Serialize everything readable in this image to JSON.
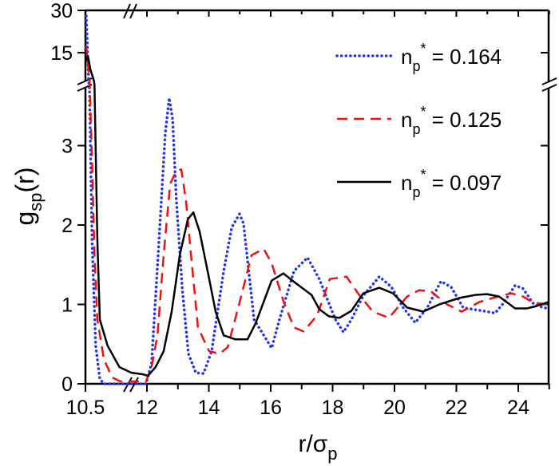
{
  "chart_data": {
    "type": "line",
    "title": "",
    "xlabel": "r/σ",
    "xlabel_sub": "p",
    "ylabel": "g",
    "ylabel_sub": "sp",
    "ylabel_suffix": "(r)",
    "xlim": [
      10.5,
      25
    ],
    "x_break": [
      11.6,
      11.7
    ],
    "ylim_lower": [
      0,
      3.77
    ],
    "ylim_upper": [
      4,
      30
    ],
    "x_ticks": [
      "10.5",
      "12",
      "14",
      "16",
      "18",
      "20",
      "22",
      "24"
    ],
    "y_ticks": [
      "0",
      "1",
      "2",
      "3",
      "15",
      "30"
    ],
    "grid": false,
    "legend_placement": "top-right",
    "series": [
      {
        "name": "n_p* = 0.164",
        "label_main": "n",
        "label_sub": "p",
        "label_sup": "*",
        "label_value": " = 0.164",
        "color": "#2233ee",
        "style": "dotted",
        "points": [
          [
            10.52,
            28
          ],
          [
            10.55,
            15
          ],
          [
            10.58,
            5
          ],
          [
            10.6,
            3.7
          ],
          [
            10.66,
            1.82
          ],
          [
            10.75,
            0.48
          ],
          [
            10.85,
            0.06
          ],
          [
            10.95,
            0
          ],
          [
            11.98,
            0
          ],
          [
            12.15,
            0.26
          ],
          [
            12.36,
            1.6
          ],
          [
            12.59,
            3.15
          ],
          [
            12.72,
            3.6
          ],
          [
            12.83,
            3.33
          ],
          [
            12.95,
            2.32
          ],
          [
            13.14,
            1.2
          ],
          [
            13.34,
            0.38
          ],
          [
            13.58,
            0.14
          ],
          [
            13.83,
            0.13
          ],
          [
            14.09,
            0.41
          ],
          [
            14.48,
            1.42
          ],
          [
            14.74,
            1.97
          ],
          [
            14.99,
            2.14
          ],
          [
            15.12,
            2.02
          ],
          [
            15.46,
            0.81
          ],
          [
            16.03,
            0.45
          ],
          [
            16.28,
            0.81
          ],
          [
            16.75,
            1.42
          ],
          [
            17.19,
            1.59
          ],
          [
            17.57,
            1.32
          ],
          [
            18.09,
            0.81
          ],
          [
            18.35,
            0.65
          ],
          [
            18.61,
            0.81
          ],
          [
            18.99,
            1.11
          ],
          [
            19.51,
            1.35
          ],
          [
            19.9,
            1.22
          ],
          [
            20.28,
            0.96
          ],
          [
            20.67,
            0.77
          ],
          [
            21.06,
            0.96
          ],
          [
            21.5,
            1.29
          ],
          [
            21.83,
            1.22
          ],
          [
            22.22,
            0.96
          ],
          [
            22.68,
            0.93
          ],
          [
            22.99,
            0.91
          ],
          [
            23.25,
            0.89
          ],
          [
            23.51,
            1.01
          ],
          [
            23.9,
            1.24
          ],
          [
            24.15,
            1.2
          ],
          [
            24.49,
            1.01
          ],
          [
            24.8,
            0.96
          ],
          [
            24.98,
            0.95
          ]
        ]
      },
      {
        "name": "n_p* = 0.125",
        "label_main": "n",
        "label_sub": "p",
        "label_sup": "*",
        "label_value": " = 0.125",
        "color": "#ee1111",
        "style": "dashed",
        "points": [
          [
            10.52,
            17.6
          ],
          [
            10.55,
            12
          ],
          [
            10.6,
            6
          ],
          [
            10.66,
            2.82
          ],
          [
            10.72,
            1.62
          ],
          [
            10.79,
            0.81
          ],
          [
            10.95,
            0.31
          ],
          [
            11.15,
            0.08
          ],
          [
            11.35,
            0.03
          ],
          [
            11.98,
            0.03
          ],
          [
            12.15,
            0.21
          ],
          [
            12.34,
            0.61
          ],
          [
            12.54,
            1.62
          ],
          [
            12.75,
            2.52
          ],
          [
            12.95,
            2.68
          ],
          [
            13.11,
            2.7
          ],
          [
            13.26,
            2.32
          ],
          [
            13.45,
            1.52
          ],
          [
            13.65,
            0.71
          ],
          [
            14.01,
            0.41
          ],
          [
            14.35,
            0.38
          ],
          [
            14.61,
            0.46
          ],
          [
            14.99,
            1.02
          ],
          [
            15.38,
            1.62
          ],
          [
            15.77,
            1.7
          ],
          [
            16.03,
            1.52
          ],
          [
            16.41,
            1.04
          ],
          [
            16.75,
            0.71
          ],
          [
            17.06,
            0.66
          ],
          [
            17.5,
            0.86
          ],
          [
            17.91,
            1.32
          ],
          [
            18.45,
            1.35
          ],
          [
            18.86,
            1.12
          ],
          [
            19.3,
            0.91
          ],
          [
            19.82,
            0.83
          ],
          [
            20.41,
            1.1
          ],
          [
            20.8,
            1.18
          ],
          [
            21.19,
            1.16
          ],
          [
            21.7,
            1.0
          ],
          [
            22.17,
            0.91
          ],
          [
            22.74,
            1.03
          ],
          [
            23.17,
            1.08
          ],
          [
            23.77,
            1.14
          ],
          [
            24.15,
            1.1
          ],
          [
            24.49,
            1.02
          ],
          [
            24.98,
            1.0
          ]
        ]
      },
      {
        "name": "n_p* = 0.097",
        "label_main": "n",
        "label_sub": "p",
        "label_sup": "*",
        "label_value": " = 0.097",
        "color": "#000000",
        "style": "solid",
        "points": [
          [
            10.51,
            12
          ],
          [
            10.56,
            13.9
          ],
          [
            10.62,
            9
          ],
          [
            10.7,
            5.4
          ],
          [
            10.72,
            3.83
          ],
          [
            10.79,
            1.82
          ],
          [
            10.85,
            0.81
          ],
          [
            11.04,
            0.48
          ],
          [
            11.33,
            0.21
          ],
          [
            11.62,
            0.14
          ],
          [
            11.91,
            0.12
          ],
          [
            12.03,
            0.1
          ],
          [
            12.28,
            0.21
          ],
          [
            12.54,
            0.41
          ],
          [
            12.8,
            0.91
          ],
          [
            13.06,
            1.62
          ],
          [
            13.32,
            2.07
          ],
          [
            13.5,
            2.16
          ],
          [
            13.7,
            1.92
          ],
          [
            13.96,
            1.42
          ],
          [
            14.22,
            0.91
          ],
          [
            14.48,
            0.61
          ],
          [
            14.86,
            0.56
          ],
          [
            15.25,
            0.56
          ],
          [
            15.51,
            0.76
          ],
          [
            16.03,
            1.3
          ],
          [
            16.41,
            1.39
          ],
          [
            16.8,
            1.27
          ],
          [
            17.32,
            1.12
          ],
          [
            17.57,
            0.94
          ],
          [
            17.88,
            0.85
          ],
          [
            18.22,
            0.83
          ],
          [
            18.61,
            0.92
          ],
          [
            18.99,
            1.14
          ],
          [
            19.51,
            1.21
          ],
          [
            19.95,
            1.14
          ],
          [
            20.41,
            0.96
          ],
          [
            20.93,
            0.91
          ],
          [
            21.45,
            1.0
          ],
          [
            22.09,
            1.08
          ],
          [
            22.61,
            1.12
          ],
          [
            22.99,
            1.13
          ],
          [
            23.38,
            1.1
          ],
          [
            23.9,
            0.95
          ],
          [
            24.28,
            0.95
          ],
          [
            24.59,
            0.98
          ],
          [
            24.98,
            1.03
          ]
        ]
      }
    ]
  }
}
